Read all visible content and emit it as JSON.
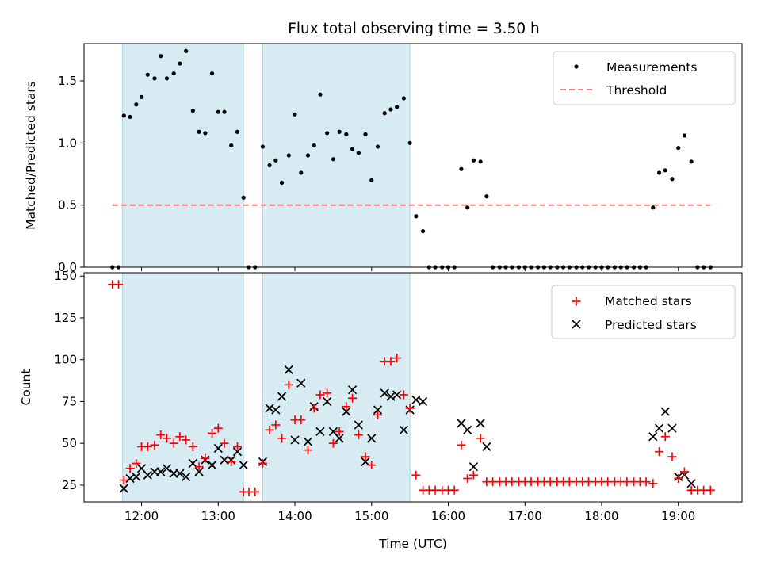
{
  "chart_data": {
    "type": "scatter",
    "title": "Flux total observing time = 3.50 h",
    "xlabel": "Time (UTC)",
    "x_range": [
      11.25,
      19.83
    ],
    "x_ticks": [
      {
        "v": 12,
        "label": "12:00"
      },
      {
        "v": 13,
        "label": "13:00"
      },
      {
        "v": 14,
        "label": "14:00"
      },
      {
        "v": 15,
        "label": "15:00"
      },
      {
        "v": 16,
        "label": "16:00"
      },
      {
        "v": 17,
        "label": "17:00"
      },
      {
        "v": 18,
        "label": "18:00"
      },
      {
        "v": 19,
        "label": "19:00"
      }
    ],
    "shaded_intervals": [
      [
        11.75,
        13.33
      ],
      [
        13.58,
        15.5
      ]
    ],
    "shade_color": "#add8e6",
    "top": {
      "ylabel": "Matched/Predicted stars",
      "ylim": [
        0,
        1.8
      ],
      "yticks": [
        "0.0",
        "0.5",
        "1.0",
        "1.5"
      ],
      "ytick_values": [
        0,
        0.5,
        1.0,
        1.5
      ],
      "threshold": {
        "name": "Threshold",
        "value": 0.5,
        "x_range": [
          11.62,
          19.42
        ],
        "color": "#ff6b6b"
      },
      "measurements": {
        "name": "Measurements",
        "color": "#000000",
        "points": [
          [
            11.62,
            0
          ],
          [
            11.7,
            0
          ],
          [
            11.77,
            1.22
          ],
          [
            11.85,
            1.21
          ],
          [
            11.93,
            1.31
          ],
          [
            12.0,
            1.37
          ],
          [
            12.08,
            1.55
          ],
          [
            12.17,
            1.52
          ],
          [
            12.25,
            1.7
          ],
          [
            12.33,
            1.52
          ],
          [
            12.42,
            1.56
          ],
          [
            12.5,
            1.64
          ],
          [
            12.58,
            1.74
          ],
          [
            12.67,
            1.26
          ],
          [
            12.75,
            1.09
          ],
          [
            12.83,
            1.08
          ],
          [
            12.92,
            1.56
          ],
          [
            13.0,
            1.25
          ],
          [
            13.08,
            1.25
          ],
          [
            13.17,
            0.98
          ],
          [
            13.25,
            1.09
          ],
          [
            13.33,
            0.56
          ],
          [
            13.4,
            0
          ],
          [
            13.48,
            0
          ],
          [
            13.58,
            0.97
          ],
          [
            13.67,
            0.82
          ],
          [
            13.75,
            0.86
          ],
          [
            13.83,
            0.68
          ],
          [
            13.92,
            0.9
          ],
          [
            14.0,
            1.23
          ],
          [
            14.08,
            0.76
          ],
          [
            14.17,
            0.9
          ],
          [
            14.25,
            0.98
          ],
          [
            14.33,
            1.39
          ],
          [
            14.42,
            1.08
          ],
          [
            14.5,
            0.87
          ],
          [
            14.58,
            1.09
          ],
          [
            14.67,
            1.07
          ],
          [
            14.75,
            0.95
          ],
          [
            14.83,
            0.92
          ],
          [
            14.92,
            1.07
          ],
          [
            15.0,
            0.7
          ],
          [
            15.08,
            0.97
          ],
          [
            15.17,
            1.24
          ],
          [
            15.25,
            1.27
          ],
          [
            15.33,
            1.29
          ],
          [
            15.42,
            1.36
          ],
          [
            15.5,
            1.0
          ],
          [
            15.58,
            0.41
          ],
          [
            15.67,
            0.29
          ],
          [
            15.75,
            0
          ],
          [
            15.83,
            0
          ],
          [
            15.92,
            0
          ],
          [
            16.0,
            0
          ],
          [
            16.08,
            0
          ],
          [
            16.17,
            0.79
          ],
          [
            16.25,
            0.48
          ],
          [
            16.33,
            0.86
          ],
          [
            16.42,
            0.85
          ],
          [
            16.5,
            0.57
          ],
          [
            16.58,
            0
          ],
          [
            16.67,
            0
          ],
          [
            16.75,
            0
          ],
          [
            16.83,
            0
          ],
          [
            16.92,
            0
          ],
          [
            17.0,
            0
          ],
          [
            17.08,
            0
          ],
          [
            17.17,
            0
          ],
          [
            17.25,
            0
          ],
          [
            17.33,
            0
          ],
          [
            17.42,
            0
          ],
          [
            17.5,
            0
          ],
          [
            17.58,
            0
          ],
          [
            17.67,
            0
          ],
          [
            17.75,
            0
          ],
          [
            17.83,
            0
          ],
          [
            17.92,
            0
          ],
          [
            18.0,
            0
          ],
          [
            18.08,
            0
          ],
          [
            18.17,
            0
          ],
          [
            18.25,
            0
          ],
          [
            18.33,
            0
          ],
          [
            18.42,
            0
          ],
          [
            18.5,
            0
          ],
          [
            18.58,
            0
          ],
          [
            18.67,
            0.48
          ],
          [
            18.75,
            0.76
          ],
          [
            18.83,
            0.78
          ],
          [
            18.92,
            0.71
          ],
          [
            19.0,
            0.96
          ],
          [
            19.08,
            1.06
          ],
          [
            19.17,
            0.85
          ],
          [
            19.25,
            0
          ],
          [
            19.33,
            0
          ],
          [
            19.42,
            0
          ]
        ]
      }
    },
    "bottom": {
      "ylabel": "Count",
      "ylim": [
        15,
        152
      ],
      "yticks": [
        "25",
        "50",
        "75",
        "100",
        "125",
        "150"
      ],
      "ytick_values": [
        25,
        50,
        75,
        100,
        125,
        150
      ],
      "matched": {
        "name": "Matched stars",
        "color": "#ff0000",
        "points": [
          [
            11.62,
            145
          ],
          [
            11.7,
            145
          ],
          [
            11.77,
            28
          ],
          [
            11.85,
            35
          ],
          [
            11.93,
            38
          ],
          [
            12.0,
            48
          ],
          [
            12.08,
            48
          ],
          [
            12.17,
            49
          ],
          [
            12.25,
            55
          ],
          [
            12.33,
            53
          ],
          [
            12.42,
            50
          ],
          [
            12.5,
            54
          ],
          [
            12.58,
            52
          ],
          [
            12.67,
            48
          ],
          [
            12.75,
            36
          ],
          [
            12.83,
            41
          ],
          [
            12.92,
            56
          ],
          [
            13.0,
            59
          ],
          [
            13.08,
            50
          ],
          [
            13.17,
            39
          ],
          [
            13.25,
            48
          ],
          [
            13.33,
            21
          ],
          [
            13.4,
            21
          ],
          [
            13.48,
            21
          ],
          [
            13.58,
            38
          ],
          [
            13.67,
            58
          ],
          [
            13.75,
            61
          ],
          [
            13.83,
            53
          ],
          [
            13.92,
            85
          ],
          [
            14.0,
            64
          ],
          [
            14.08,
            64
          ],
          [
            14.17,
            46
          ],
          [
            14.25,
            71
          ],
          [
            14.33,
            79
          ],
          [
            14.42,
            80
          ],
          [
            14.5,
            50
          ],
          [
            14.58,
            57
          ],
          [
            14.67,
            72
          ],
          [
            14.75,
            77
          ],
          [
            14.83,
            55
          ],
          [
            14.92,
            42
          ],
          [
            15.0,
            37
          ],
          [
            15.08,
            67
          ],
          [
            15.17,
            99
          ],
          [
            15.25,
            99
          ],
          [
            15.33,
            101
          ],
          [
            15.42,
            79
          ],
          [
            15.5,
            71
          ],
          [
            15.58,
            31
          ],
          [
            15.67,
            22
          ],
          [
            15.75,
            22
          ],
          [
            15.83,
            22
          ],
          [
            15.92,
            22
          ],
          [
            16.0,
            22
          ],
          [
            16.08,
            22
          ],
          [
            16.17,
            49
          ],
          [
            16.25,
            29
          ],
          [
            16.33,
            31
          ],
          [
            16.42,
            53
          ],
          [
            16.5,
            27
          ],
          [
            16.58,
            27
          ],
          [
            16.67,
            27
          ],
          [
            16.75,
            27
          ],
          [
            16.83,
            27
          ],
          [
            16.92,
            27
          ],
          [
            17.0,
            27
          ],
          [
            17.08,
            27
          ],
          [
            17.17,
            27
          ],
          [
            17.25,
            27
          ],
          [
            17.33,
            27
          ],
          [
            17.42,
            27
          ],
          [
            17.5,
            27
          ],
          [
            17.58,
            27
          ],
          [
            17.67,
            27
          ],
          [
            17.75,
            27
          ],
          [
            17.83,
            27
          ],
          [
            17.92,
            27
          ],
          [
            18.0,
            27
          ],
          [
            18.08,
            27
          ],
          [
            18.17,
            27
          ],
          [
            18.25,
            27
          ],
          [
            18.33,
            27
          ],
          [
            18.42,
            27
          ],
          [
            18.5,
            27
          ],
          [
            18.58,
            27
          ],
          [
            18.67,
            26
          ],
          [
            18.75,
            45
          ],
          [
            18.83,
            54
          ],
          [
            18.92,
            42
          ],
          [
            19.0,
            29
          ],
          [
            19.08,
            33
          ],
          [
            19.17,
            22
          ],
          [
            19.25,
            22
          ],
          [
            19.33,
            22
          ],
          [
            19.42,
            22
          ]
        ]
      },
      "predicted": {
        "name": "Predicted stars",
        "color": "#000000",
        "points": [
          [
            11.77,
            23
          ],
          [
            11.85,
            29
          ],
          [
            11.93,
            30
          ],
          [
            12.0,
            35
          ],
          [
            12.08,
            31
          ],
          [
            12.17,
            33
          ],
          [
            12.25,
            33
          ],
          [
            12.33,
            35
          ],
          [
            12.42,
            32
          ],
          [
            12.5,
            32
          ],
          [
            12.58,
            30
          ],
          [
            12.67,
            38
          ],
          [
            12.75,
            33
          ],
          [
            12.83,
            40
          ],
          [
            12.92,
            37
          ],
          [
            13.0,
            47
          ],
          [
            13.08,
            40
          ],
          [
            13.17,
            40
          ],
          [
            13.25,
            45
          ],
          [
            13.33,
            37
          ],
          [
            13.58,
            39
          ],
          [
            13.67,
            71
          ],
          [
            13.75,
            70
          ],
          [
            13.83,
            78
          ],
          [
            13.92,
            94
          ],
          [
            14.0,
            52
          ],
          [
            14.08,
            86
          ],
          [
            14.17,
            51
          ],
          [
            14.25,
            72
          ],
          [
            14.33,
            57
          ],
          [
            14.42,
            75
          ],
          [
            14.5,
            57
          ],
          [
            14.58,
            53
          ],
          [
            14.67,
            69
          ],
          [
            14.75,
            82
          ],
          [
            14.83,
            61
          ],
          [
            14.92,
            39
          ],
          [
            15.0,
            53
          ],
          [
            15.08,
            70
          ],
          [
            15.17,
            80
          ],
          [
            15.25,
            78
          ],
          [
            15.33,
            79
          ],
          [
            15.42,
            58
          ],
          [
            15.5,
            70
          ],
          [
            15.58,
            76
          ],
          [
            15.67,
            75
          ],
          [
            16.17,
            62
          ],
          [
            16.25,
            58
          ],
          [
            16.33,
            36
          ],
          [
            16.42,
            62
          ],
          [
            16.5,
            48
          ],
          [
            18.67,
            54
          ],
          [
            18.75,
            59
          ],
          [
            18.83,
            69
          ],
          [
            18.92,
            59
          ],
          [
            19.0,
            30
          ],
          [
            19.08,
            31
          ],
          [
            19.17,
            26
          ]
        ]
      }
    }
  }
}
